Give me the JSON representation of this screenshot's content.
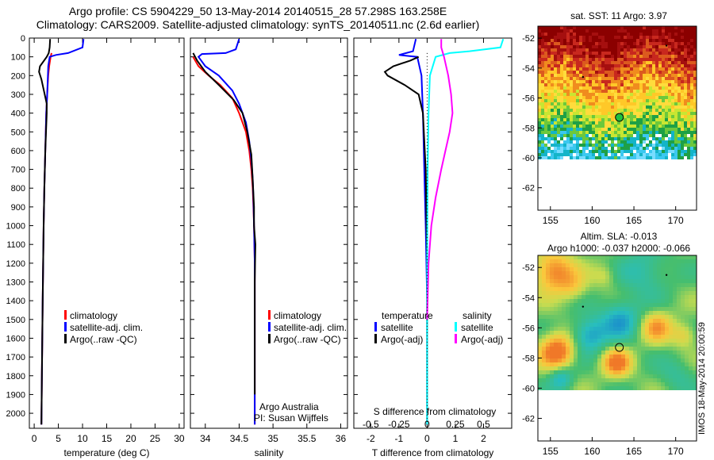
{
  "header": {
    "title_line1": "Argo profile: CS 5904229_50 13-May-2014 20140515_28 57.298S 163.258E",
    "title_line2": "Climatology: CARS2009. Satellite-adjusted climatology: synTS_20140511.nc (2.6d earlier)"
  },
  "colors": {
    "climatology": "#ff0000",
    "satellite": "#0000ff",
    "argo": "#000000",
    "satellite_salinity": "#00ffff",
    "argo_salinity_adj": "#ff00ff"
  },
  "chart_data": [
    {
      "type": "line",
      "name": "temperature-profile",
      "xlabel": "temperature (deg C)",
      "ylabel": "",
      "xlim": [
        -1,
        31
      ],
      "ylim": [
        2080,
        0
      ],
      "xticks": [
        0,
        5,
        10,
        15,
        20,
        25,
        30
      ],
      "yticks": [
        0,
        100,
        200,
        300,
        400,
        500,
        600,
        700,
        800,
        900,
        1000,
        1100,
        1200,
        1300,
        1400,
        1500,
        1600,
        1700,
        1800,
        1900,
        2000
      ],
      "legend": [
        "climatology",
        "satellite-adj. clim.",
        "Argo(..raw -QC)"
      ],
      "series": [
        {
          "name": "climatology",
          "color": "#ff0000",
          "x": [
            3.6,
            3.4,
            3.1,
            2.9,
            2.7,
            2.5,
            2.3,
            2.1,
            1.95,
            1.75,
            1.6,
            1.5
          ],
          "y": [
            80,
            100,
            150,
            200,
            300,
            400,
            600,
            800,
            1000,
            1400,
            1800,
            2060
          ]
        },
        {
          "name": "satellite-adj. clim.",
          "color": "#0000ff",
          "x": [
            10.2,
            10,
            7,
            4.5,
            3.2,
            2.9,
            2.7,
            2.5,
            2.3,
            2.1,
            1.95,
            1.75,
            1.6,
            1.5
          ],
          "y": [
            5,
            50,
            80,
            90,
            100,
            150,
            300,
            400,
            600,
            800,
            1000,
            1400,
            1800,
            2060
          ]
        },
        {
          "name": "Argo(..raw -QC)",
          "color": "#000000",
          "x": [
            3.3,
            3.2,
            3.0,
            2.6,
            1.2,
            1.0,
            1.5,
            2.0,
            2.6,
            2.6,
            2.3,
            2.1,
            1.95,
            1.75,
            1.6,
            1.5
          ],
          "y": [
            5,
            50,
            80,
            100,
            150,
            180,
            220,
            280,
            350,
            400,
            600,
            800,
            1000,
            1400,
            1800,
            2060
          ]
        }
      ]
    },
    {
      "type": "line",
      "name": "salinity-profile",
      "xlabel": "salinity",
      "ylabel": "",
      "xlim": [
        33.78,
        36.1
      ],
      "ylim": [
        2080,
        0
      ],
      "xticks": [
        34,
        34.5,
        35,
        35.5,
        36
      ],
      "legend": [
        "climatology",
        "satellite-adj. clim.",
        "Argo(..raw -QC)"
      ],
      "annotation_line1": "Argo Australia",
      "annotation_line2": "PI: Susan Wijffels",
      "series": [
        {
          "name": "climatology",
          "color": "#ff0000",
          "x": [
            33.82,
            33.9,
            34.05,
            34.22,
            34.4,
            34.5,
            34.6,
            34.65,
            34.68,
            34.7,
            34.71,
            34.72,
            34.73,
            34.73,
            34.73
          ],
          "y": [
            100,
            150,
            200,
            250,
            320,
            400,
            500,
            600,
            700,
            800,
            900,
            1000,
            1200,
            1600,
            2060
          ]
        },
        {
          "name": "satellite-adj. clim.",
          "color": "#0000ff",
          "x": [
            34.5,
            34.45,
            34.3,
            33.95,
            33.9,
            34.0,
            34.2,
            34.4,
            34.5,
            34.6,
            34.65,
            34.68,
            34.7,
            34.71,
            34.72,
            34.73,
            34.73,
            34.73
          ],
          "y": [
            5,
            60,
            80,
            85,
            100,
            150,
            200,
            280,
            350,
            450,
            550,
            650,
            750,
            850,
            1000,
            1200,
            1600,
            2060
          ]
        },
        {
          "name": "Argo(..raw -QC)",
          "color": "#000000",
          "x": [
            33.82,
            33.88,
            34.0,
            34.2,
            34.42,
            34.55,
            34.62,
            34.68,
            34.7,
            34.72,
            34.72,
            34.74,
            34.73,
            34.73
          ],
          "y": [
            80,
            120,
            180,
            250,
            330,
            400,
            500,
            620,
            750,
            900,
            1000,
            1100,
            1300,
            1900
          ]
        }
      ]
    },
    {
      "type": "line",
      "name": "difference-from-climatology",
      "xlabel": "T difference from climatology",
      "xlabel_top": "S difference from climatology",
      "xlim": [
        -2.6,
        3.0
      ],
      "ylim": [
        2080,
        0
      ],
      "xticks": [
        -2,
        -1,
        0,
        1,
        2
      ],
      "s_xticks": [
        "-0.5",
        "-0.25",
        "0",
        "0.25",
        "0.5"
      ],
      "legend_temperature_title": "temperature",
      "legend_salinity_title": "salinity",
      "legend": [
        "satellite",
        "Argo(-adj)",
        "satellite",
        "Argo(-adj)"
      ],
      "series": [
        {
          "name": "satellite",
          "color": "#0000ff",
          "x": [
            -0.4,
            -0.5,
            -1.0,
            -0.35,
            -0.2,
            -0.15,
            -0.1,
            -0.05,
            0,
            0
          ],
          "y": [
            5,
            70,
            90,
            100,
            200,
            400,
            700,
            1000,
            1400,
            2060
          ]
        },
        {
          "name": "Argo(-adj)",
          "color": "#000000",
          "x": [
            -0.3,
            -0.6,
            -1.2,
            -1.5,
            -1.4,
            -0.8,
            -0.3,
            -0.15,
            -0.05,
            0,
            0
          ],
          "y": [
            100,
            120,
            150,
            180,
            200,
            250,
            300,
            400,
            700,
            1200,
            2060
          ]
        },
        {
          "name": "satellite",
          "color": "#00ffff",
          "x": [
            2.7,
            2.6,
            1.5,
            0.8,
            0.3,
            0.1,
            0.05,
            0.02,
            0.0,
            0.0
          ],
          "y": [
            5,
            50,
            70,
            80,
            100,
            200,
            400,
            700,
            1200,
            2060
          ]
        },
        {
          "name": "Argo(-adj)",
          "color": "#ff00ff",
          "x": [
            0.5,
            0.5,
            0.6,
            0.75,
            0.85,
            0.9,
            0.8,
            0.65,
            0.5,
            0.3,
            0.15,
            0.05,
            0.0
          ],
          "y": [
            5,
            50,
            100,
            200,
            300,
            400,
            500,
            600,
            700,
            850,
            1000,
            1200,
            1500
          ]
        }
      ]
    },
    {
      "type": "heatmap",
      "name": "sst-map",
      "title": "sat. SST: 11 Argo: 3.97",
      "xlim": [
        153.5,
        172.5
      ],
      "ylim": [
        -63.5,
        -51.2
      ],
      "xticks": [
        155,
        160,
        165,
        170
      ],
      "yticks": [
        -52,
        -54,
        -56,
        -58,
        -60,
        -62
      ],
      "argo_position": {
        "lon": 163.258,
        "lat": -57.298
      }
    },
    {
      "type": "heatmap",
      "name": "sla-map",
      "title_line1": "Altim. SLA: -0.013",
      "title_line2": "Argo h1000: -0.037 h2000: -0.066",
      "xlim": [
        153.5,
        172.5
      ],
      "ylim": [
        -63.5,
        -51.2
      ],
      "xticks": [
        155,
        160,
        165,
        170
      ],
      "yticks": [
        -52,
        -54,
        -56,
        -58,
        -60,
        -62
      ],
      "argo_position": {
        "lon": 163.258,
        "lat": -57.298
      }
    }
  ],
  "footer_stamp": "IMOS 18-May-2014 20:00:59"
}
